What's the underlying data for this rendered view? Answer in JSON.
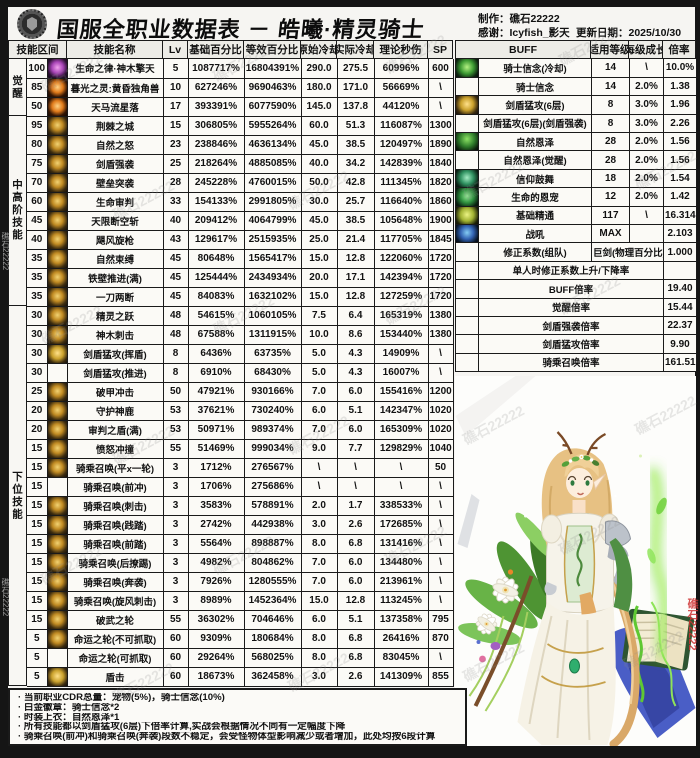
{
  "header": {
    "title": "国服全职业数据表 － 皓曦·精灵骑士",
    "made_by": "制作：礁石22222",
    "thanks": "感谢：Icyfish_影天",
    "updated": "更新日期：2025/10/30"
  },
  "watermark": "礁石22222",
  "skills": {
    "headers": [
      "技能区间",
      "技能名称",
      "Lv",
      "基础百分比",
      "等效百分比",
      "原始冷却",
      "实际冷却",
      "理论秒伤",
      "SP"
    ],
    "sections": [
      {
        "label": "觉醒",
        "rows": 3
      },
      {
        "label": "中高阶技能",
        "rows": 10
      },
      {
        "label": "下位技能",
        "rows": 20
      }
    ],
    "rows": [
      {
        "range": "100",
        "icon": "purple",
        "name": "生命之律·神木擎天",
        "lv": "5",
        "base": "1087717%",
        "eq": "16804391%",
        "cd": "290.0",
        "rcd": "275.5",
        "dps": "60996%",
        "sp": "600"
      },
      {
        "range": "85",
        "icon": "orange",
        "name": "暮光之灵:黄昏独角兽",
        "lv": "10",
        "base": "627246%",
        "eq": "9690463%",
        "cd": "180.0",
        "rcd": "171.0",
        "dps": "56669%",
        "sp": "\\"
      },
      {
        "range": "50",
        "icon": "orange",
        "name": "天马流星落",
        "lv": "17",
        "base": "393391%",
        "eq": "6077590%",
        "cd": "145.0",
        "rcd": "137.8",
        "dps": "44120%",
        "sp": "\\"
      },
      {
        "range": "95",
        "icon": "gold",
        "name": "荆棘之城",
        "lv": "15",
        "base": "306805%",
        "eq": "5955264%",
        "cd": "60.0",
        "rcd": "51.3",
        "dps": "116087%",
        "sp": "1300"
      },
      {
        "range": "80",
        "icon": "gold",
        "name": "自然之怒",
        "lv": "23",
        "base": "238846%",
        "eq": "4636134%",
        "cd": "45.0",
        "rcd": "38.5",
        "dps": "120497%",
        "sp": "1890"
      },
      {
        "range": "75",
        "icon": "gold",
        "name": "剑盾强袭",
        "lv": "25",
        "base": "218264%",
        "eq": "4885085%",
        "cd": "40.0",
        "rcd": "34.2",
        "dps": "142839%",
        "sp": "1840"
      },
      {
        "range": "70",
        "icon": "gold",
        "name": "壁垒突袭",
        "lv": "28",
        "base": "245228%",
        "eq": "4760015%",
        "cd": "50.0",
        "rcd": "42.8",
        "dps": "111345%",
        "sp": "1820"
      },
      {
        "range": "60",
        "icon": "gold",
        "name": "生命审判",
        "lv": "33",
        "base": "154133%",
        "eq": "2991805%",
        "cd": "30.0",
        "rcd": "25.7",
        "dps": "116640%",
        "sp": "1860"
      },
      {
        "range": "45",
        "icon": "gold",
        "name": "天限断空斩",
        "lv": "40",
        "base": "209412%",
        "eq": "4064799%",
        "cd": "45.0",
        "rcd": "38.5",
        "dps": "105648%",
        "sp": "1900"
      },
      {
        "range": "40",
        "icon": "gold",
        "name": "飓风旋枪",
        "lv": "43",
        "base": "129617%",
        "eq": "2515935%",
        "cd": "25.0",
        "rcd": "21.4",
        "dps": "117705%",
        "sp": "1845"
      },
      {
        "range": "35",
        "icon": "gold",
        "name": "自然束缚",
        "lv": "45",
        "base": "80648%",
        "eq": "1565417%",
        "cd": "15.0",
        "rcd": "12.8",
        "dps": "122060%",
        "sp": "1720"
      },
      {
        "range": "35",
        "icon": "gold",
        "name": "铁壁推进(满)",
        "lv": "45",
        "base": "125444%",
        "eq": "2434934%",
        "cd": "20.0",
        "rcd": "17.1",
        "dps": "142394%",
        "sp": "1720"
      },
      {
        "range": "35",
        "icon": "gold",
        "name": "一刀两断",
        "lv": "45",
        "base": "84083%",
        "eq": "1632102%",
        "cd": "15.0",
        "rcd": "12.8",
        "dps": "127259%",
        "sp": "1720"
      },
      {
        "range": "30",
        "icon": "gold",
        "name": "精灵之跃",
        "lv": "48",
        "base": "54615%",
        "eq": "1060105%",
        "cd": "7.5",
        "rcd": "6.4",
        "dps": "165319%",
        "sp": "1380"
      },
      {
        "range": "30",
        "icon": "gold",
        "name": "神木刺击",
        "lv": "48",
        "base": "67588%",
        "eq": "1311915%",
        "cd": "10.0",
        "rcd": "8.6",
        "dps": "153440%",
        "sp": "1380"
      },
      {
        "range": "30",
        "icon": "gold-shield",
        "name": "剑盾猛攻(挥盾)",
        "lv": "8",
        "base": "6436%",
        "eq": "63735%",
        "cd": "5.0",
        "rcd": "4.3",
        "dps": "14909%",
        "sp": "\\"
      },
      {
        "range": "30",
        "icon": "none",
        "name": "剑盾猛攻(推进)",
        "lv": "8",
        "base": "6910%",
        "eq": "68430%",
        "cd": "5.0",
        "rcd": "4.3",
        "dps": "16007%",
        "sp": "\\"
      },
      {
        "range": "25",
        "icon": "gold",
        "name": "破甲冲击",
        "lv": "50",
        "base": "47921%",
        "eq": "930166%",
        "cd": "7.0",
        "rcd": "6.0",
        "dps": "155416%",
        "sp": "1200"
      },
      {
        "range": "20",
        "icon": "gold",
        "name": "守护神鹿",
        "lv": "53",
        "base": "37621%",
        "eq": "730240%",
        "cd": "6.0",
        "rcd": "5.1",
        "dps": "142347%",
        "sp": "1020"
      },
      {
        "range": "20",
        "icon": "gold",
        "name": "审判之盾(满)",
        "lv": "53",
        "base": "50971%",
        "eq": "989374%",
        "cd": "7.0",
        "rcd": "6.0",
        "dps": "165309%",
        "sp": "1020"
      },
      {
        "range": "15",
        "icon": "gold",
        "name": "愤怒冲撞",
        "lv": "55",
        "base": "51469%",
        "eq": "999034%",
        "cd": "9.0",
        "rcd": "7.7",
        "dps": "129829%",
        "sp": "1040"
      },
      {
        "range": "15",
        "icon": "gold",
        "name": "骑乘召唤(平x一轮)",
        "lv": "3",
        "base": "1712%",
        "eq": "276567%",
        "cd": "\\",
        "rcd": "\\",
        "dps": "\\",
        "sp": "50"
      },
      {
        "range": "15",
        "icon": "none",
        "name": "骑乘召唤(前冲)",
        "lv": "3",
        "base": "1706%",
        "eq": "275686%",
        "cd": "\\",
        "rcd": "\\",
        "dps": "\\",
        "sp": "\\"
      },
      {
        "range": "15",
        "icon": "gold",
        "name": "骑乘召唤(刺击)",
        "lv": "3",
        "base": "3583%",
        "eq": "578891%",
        "cd": "2.0",
        "rcd": "1.7",
        "dps": "338533%",
        "sp": "\\"
      },
      {
        "range": "15",
        "icon": "gold",
        "name": "骑乘召唤(践踏)",
        "lv": "3",
        "base": "2742%",
        "eq": "442938%",
        "cd": "3.0",
        "rcd": "2.6",
        "dps": "172685%",
        "sp": "\\"
      },
      {
        "range": "15",
        "icon": "gold",
        "name": "骑乘召唤(前踏)",
        "lv": "3",
        "base": "5564%",
        "eq": "898887%",
        "cd": "8.0",
        "rcd": "6.8",
        "dps": "131416%",
        "sp": "\\"
      },
      {
        "range": "15",
        "icon": "gold",
        "name": "骑乘召唤(后撩踢)",
        "lv": "3",
        "base": "4982%",
        "eq": "804862%",
        "cd": "7.0",
        "rcd": "6.0",
        "dps": "134480%",
        "sp": "\\"
      },
      {
        "range": "15",
        "icon": "gold",
        "name": "骑乘召唤(奔袭)",
        "lv": "3",
        "base": "7926%",
        "eq": "1280555%",
        "cd": "7.0",
        "rcd": "6.0",
        "dps": "213961%",
        "sp": "\\"
      },
      {
        "range": "15",
        "icon": "gold",
        "name": "骑乘召唤(旋风刺击)",
        "lv": "3",
        "base": "8989%",
        "eq": "1452364%",
        "cd": "15.0",
        "rcd": "12.8",
        "dps": "113245%",
        "sp": "\\"
      },
      {
        "range": "15",
        "icon": "gold",
        "name": "破武之轮",
        "lv": "55",
        "base": "36302%",
        "eq": "704646%",
        "cd": "6.0",
        "rcd": "5.1",
        "dps": "137358%",
        "sp": "795"
      },
      {
        "range": "5",
        "icon": "gold",
        "name": "命运之轮(不可抓取)",
        "lv": "60",
        "base": "9309%",
        "eq": "180684%",
        "cd": "8.0",
        "rcd": "6.8",
        "dps": "26416%",
        "sp": "870"
      },
      {
        "range": "5",
        "icon": "none",
        "name": "命运之轮(可抓取)",
        "lv": "60",
        "base": "29264%",
        "eq": "568025%",
        "cd": "8.0",
        "rcd": "6.8",
        "dps": "83045%",
        "sp": "\\"
      },
      {
        "range": "5",
        "icon": "gold-shield",
        "name": "盾击",
        "lv": "60",
        "base": "18673%",
        "eq": "362458%",
        "cd": "3.0",
        "rcd": "2.6",
        "dps": "141309%",
        "sp": "855"
      }
    ]
  },
  "buffs": {
    "headers": [
      "BUFF",
      "适用等级",
      "每级成长",
      "倍率"
    ],
    "rows": [
      {
        "icon": "green-burst",
        "name": "骑士信念(冷却)",
        "lvl": "14",
        "growth": "\\",
        "rate": "10.0%",
        "merge": "none"
      },
      {
        "icon": "none",
        "name": "骑士信念",
        "lvl": "14",
        "growth": "2.0%",
        "rate": "1.38",
        "merge": "none"
      },
      {
        "icon": "gold-shield",
        "name": "剑盾猛攻(6层)",
        "lvl": "8",
        "growth": "3.0%",
        "rate": "1.96",
        "merge": "none"
      },
      {
        "icon": "none",
        "name": "剑盾猛攻(6层)(剑盾强袭)",
        "lvl": "8",
        "growth": "3.0%",
        "rate": "2.26",
        "merge": "none"
      },
      {
        "icon": "green-tree",
        "name": "自然恩泽",
        "lvl": "28",
        "growth": "2.0%",
        "rate": "1.56",
        "merge": "none"
      },
      {
        "icon": "none",
        "name": "自然恩泽(觉醒)",
        "lvl": "28",
        "growth": "2.0%",
        "rate": "1.56",
        "merge": "none"
      },
      {
        "icon": "green-shield",
        "name": "信仰鼓舞",
        "lvl": "18",
        "growth": "2.0%",
        "rate": "1.54",
        "merge": "none"
      },
      {
        "icon": "green-deer",
        "name": "生命的恩宠",
        "lvl": "12",
        "growth": "2.0%",
        "rate": "1.42",
        "merge": "none"
      },
      {
        "icon": "yellow-figure",
        "name": "基础精通",
        "lvl": "117",
        "growth": "\\",
        "rate": "16.314",
        "merge": "none"
      },
      {
        "icon": "blue-figure",
        "name": "战吼",
        "lvl": "MAX",
        "growth": "",
        "rate": "2.103",
        "merge": "none"
      },
      {
        "icon": "none",
        "name": "修正系数(组队)",
        "lvl": "巨剑(物理百分比)",
        "growth": "",
        "rate": "1.000",
        "merge": "mid2"
      },
      {
        "icon": "none",
        "name": "单人时修正系数上升/下降率",
        "lvl": "",
        "growth": "",
        "rate": "",
        "merge": "label3"
      },
      {
        "icon": "none",
        "name": "BUFF倍率",
        "lvl": "",
        "growth": "",
        "rate": "19.40",
        "merge": "label3"
      },
      {
        "icon": "none",
        "name": "觉醒倍率",
        "lvl": "",
        "growth": "",
        "rate": "15.44",
        "merge": "label3"
      },
      {
        "icon": "none",
        "name": "剑盾强袭倍率",
        "lvl": "",
        "growth": "",
        "rate": "22.37",
        "merge": "label3"
      },
      {
        "icon": "none",
        "name": "剑盾猛攻倍率",
        "lvl": "",
        "growth": "",
        "rate": "9.90",
        "merge": "label3"
      },
      {
        "icon": "none",
        "name": "骑乘召唤倍率",
        "lvl": "",
        "growth": "",
        "rate": "161.51",
        "merge": "label3"
      }
    ]
  },
  "notes": [
    "当前职业CDR总量：宠物(5%)，骑士信念(10%)",
    "白金徽章：骑士信念*2",
    "时装上衣：自然恩泽*1",
    "所有技能都以剑盾猛攻(6层)下倍率计算,实战会根据情况不同有一定幅度下降",
    "骑乘召唤(前冲)和骑乘召唤(奔袭)段数不稳定，会受怪物体型影响减少或者增加，此处均按6段计算"
  ]
}
